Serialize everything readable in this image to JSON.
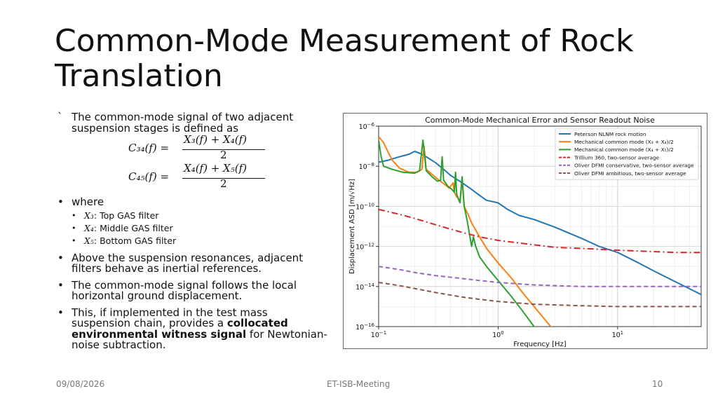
{
  "slide": {
    "title_line1": "Common-Mode Measurement of Rock",
    "title_line2": "Translation",
    "intro_bullet": "`",
    "intro_line1": "The common-mode signal of two adjacent",
    "intro_line2": "suspension stages is defined as",
    "formula1": {
      "lhs": "C₃₄(f) =",
      "num": "X₃(f) + X₄(f)",
      "den": "2"
    },
    "formula2": {
      "lhs": "C₄₅(f) =",
      "num": "X₄(f) + X₅(f)",
      "den": "2"
    },
    "where_label": "where",
    "sub_items": [
      {
        "sym": "X₃",
        "text": ": Top GAS filter"
      },
      {
        "sym": "X₄",
        "text": ": Middle GAS filter"
      },
      {
        "sym": "X₅",
        "text": ": Bottom GAS filter"
      }
    ],
    "bullet3_line1": "Above the suspension resonances, adjacent",
    "bullet3_line2": "filters behave as inertial references.",
    "bullet4_line1": "The common-mode signal follows the local",
    "bullet4_line2": "horizontal ground displacement.",
    "bullet5_line1": "This, if implemented in the test mass",
    "bullet5_line2a": "suspension chain, provides a ",
    "bullet5_bold1": "collocated",
    "bullet5_bold2": "environmental witness signal",
    "bullet5_line3b": " for Newtonian-",
    "bullet5_line4": "noise subtraction.",
    "bullet_char": "•",
    "sub_bullet_char": "•"
  },
  "footer": {
    "date": "09/08/2026",
    "center": "ET-ISB-Meeting",
    "page": "10"
  },
  "chart_data": {
    "type": "line",
    "title": "Common-Mode Mechanical Error and Sensor Readout Noise",
    "xlabel": "Frequency [Hz]",
    "ylabel": "Displacement ASD [m/√Hz]",
    "xscale": "log",
    "yscale": "log",
    "xlim": [
      0.1,
      50
    ],
    "ylim": [
      1e-16,
      1e-06
    ],
    "grid": true,
    "legend_position": "top-right",
    "x_ticks": [
      {
        "base": "10",
        "exp": "−1"
      },
      {
        "base": "10",
        "exp": "0"
      },
      {
        "base": "10",
        "exp": "1"
      }
    ],
    "y_ticks": [
      {
        "base": "10",
        "exp": "−6"
      },
      {
        "base": "10",
        "exp": "−8"
      },
      {
        "base": "10",
        "exp": "−10"
      },
      {
        "base": "10",
        "exp": "−12"
      },
      {
        "base": "10",
        "exp": "−14"
      },
      {
        "base": "10",
        "exp": "−16"
      }
    ],
    "series": [
      {
        "name": "Peterson NLNM rock motion",
        "color": "#1f77b4",
        "dash": "",
        "width": 2,
        "points": [
          [
            0.1,
            1.6e-08
          ],
          [
            0.12,
            2e-08
          ],
          [
            0.15,
            3e-08
          ],
          [
            0.18,
            4e-08
          ],
          [
            0.2,
            5.5e-08
          ],
          [
            0.22,
            4.5e-08
          ],
          [
            0.25,
            3e-08
          ],
          [
            0.3,
            1.5e-08
          ],
          [
            0.35,
            7e-09
          ],
          [
            0.4,
            3.5e-09
          ],
          [
            0.5,
            1.5e-09
          ],
          [
            0.6,
            7e-10
          ],
          [
            0.7,
            3.5e-10
          ],
          [
            0.8,
            2e-10
          ],
          [
            1,
            1.5e-10
          ],
          [
            1.2,
            7e-11
          ],
          [
            1.5,
            3.5e-11
          ],
          [
            2,
            2.2e-11
          ],
          [
            3,
            9e-12
          ],
          [
            5,
            2.5e-12
          ],
          [
            7,
            1e-12
          ],
          [
            10,
            5e-13
          ],
          [
            15,
            1.5e-13
          ],
          [
            20,
            6e-14
          ],
          [
            30,
            1.8e-14
          ],
          [
            50,
            4e-15
          ]
        ]
      },
      {
        "name": "Mechanical common mode (X₃ + X₄)/2",
        "color": "#ff7f0e",
        "dash": "",
        "width": 2,
        "points": [
          [
            0.1,
            3e-07
          ],
          [
            0.11,
            1.5e-07
          ],
          [
            0.12,
            5e-08
          ],
          [
            0.13,
            2e-08
          ],
          [
            0.15,
            8e-09
          ],
          [
            0.18,
            5e-09
          ],
          [
            0.21,
            5e-09
          ],
          [
            0.23,
            7e-09
          ],
          [
            0.24,
            1e-07
          ],
          [
            0.25,
            7e-09
          ],
          [
            0.28,
            4e-09
          ],
          [
            0.32,
            2e-09
          ],
          [
            0.36,
            1.2e-09
          ],
          [
            0.39,
            8e-10
          ],
          [
            0.42,
            1.5e-09
          ],
          [
            0.43,
            5e-10
          ],
          [
            0.45,
            3e-10
          ],
          [
            0.48,
            2e-10
          ],
          [
            0.5,
            2.5e-09
          ],
          [
            0.52,
            1e-10
          ],
          [
            0.56,
            4e-11
          ],
          [
            0.6,
            1.5e-11
          ],
          [
            0.7,
            3e-12
          ],
          [
            0.8,
            8e-13
          ],
          [
            1,
            1.5e-13
          ],
          [
            1.3,
            2.5e-14
          ],
          [
            1.6,
            5e-15
          ],
          [
            2,
            1e-15
          ],
          [
            2.5,
            2e-16
          ],
          [
            2.9,
            7e-17
          ]
        ]
      },
      {
        "name": "Mechanical common mode (X₄ + X₅)/2",
        "color": "#2ca02c",
        "dash": "",
        "width": 2,
        "points": [
          [
            0.1,
            2e-07
          ],
          [
            0.105,
            3e-08
          ],
          [
            0.11,
            1e-08
          ],
          [
            0.13,
            7e-09
          ],
          [
            0.16,
            5e-09
          ],
          [
            0.2,
            4.5e-09
          ],
          [
            0.22,
            6e-09
          ],
          [
            0.235,
            2e-07
          ],
          [
            0.25,
            6e-09
          ],
          [
            0.28,
            3e-09
          ],
          [
            0.31,
            1.8e-09
          ],
          [
            0.33,
            2e-09
          ],
          [
            0.34,
            3e-08
          ],
          [
            0.35,
            2e-09
          ],
          [
            0.38,
            1e-09
          ],
          [
            0.41,
            7e-10
          ],
          [
            0.43,
            5e-10
          ],
          [
            0.44,
            5e-09
          ],
          [
            0.45,
            4e-10
          ],
          [
            0.47,
            2e-10
          ],
          [
            0.48,
            1.5e-10
          ],
          [
            0.5,
            3e-09
          ],
          [
            0.52,
            1e-10
          ],
          [
            0.55,
            2e-11
          ],
          [
            0.6,
            1e-12
          ],
          [
            0.62,
            3e-12
          ],
          [
            0.65,
            1e-12
          ],
          [
            0.7,
            3e-13
          ],
          [
            0.8,
            1e-13
          ],
          [
            1,
            2e-14
          ],
          [
            1.3,
            3e-15
          ],
          [
            1.6,
            6e-16
          ],
          [
            2,
            1e-16
          ],
          [
            2.3,
            5e-17
          ]
        ]
      },
      {
        "name": "Trillium 360, two-sensor average",
        "color": "#d62728",
        "dash": "9,4,2,4",
        "width": 2,
        "points": [
          [
            0.1,
            7e-11
          ],
          [
            0.15,
            4e-11
          ],
          [
            0.2,
            2.5e-11
          ],
          [
            0.3,
            1.2e-11
          ],
          [
            0.5,
            5e-12
          ],
          [
            0.7,
            3e-12
          ],
          [
            1,
            2e-12
          ],
          [
            2,
            1.2e-12
          ],
          [
            3,
            9e-13
          ],
          [
            5,
            8e-13
          ],
          [
            10,
            6.5e-13
          ],
          [
            20,
            5.5e-13
          ],
          [
            30,
            5e-13
          ],
          [
            50,
            5e-13
          ]
        ]
      },
      {
        "name": "Oliver DFMI conservative, two-sensor average",
        "color": "#9467bd",
        "dash": "6,4",
        "width": 2,
        "points": [
          [
            0.1,
            1e-13
          ],
          [
            0.15,
            7e-14
          ],
          [
            0.2,
            5e-14
          ],
          [
            0.3,
            3.5e-14
          ],
          [
            0.5,
            2.5e-14
          ],
          [
            0.7,
            2e-14
          ],
          [
            1,
            1.6e-14
          ],
          [
            2,
            1.2e-14
          ],
          [
            5,
            1e-14
          ],
          [
            10,
            1e-14
          ],
          [
            20,
            1e-14
          ],
          [
            50,
            1e-14
          ]
        ]
      },
      {
        "name": "Oliver DFMI ambitious, two-sensor average",
        "color": "#8c564b",
        "dash": "6,4",
        "width": 2,
        "points": [
          [
            0.1,
            1.6e-14
          ],
          [
            0.15,
            1.1e-14
          ],
          [
            0.2,
            8e-15
          ],
          [
            0.3,
            5e-15
          ],
          [
            0.5,
            3e-15
          ],
          [
            0.7,
            2.3e-15
          ],
          [
            1,
            1.8e-15
          ],
          [
            2,
            1.3e-15
          ],
          [
            5,
            1.1e-15
          ],
          [
            10,
            1e-15
          ],
          [
            20,
            1e-15
          ],
          [
            50,
            1e-15
          ]
        ]
      }
    ]
  }
}
